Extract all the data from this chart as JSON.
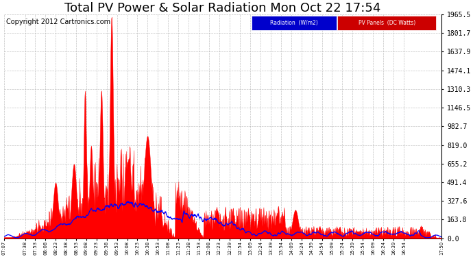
{
  "title": "Total PV Power & Solar Radiation Mon Oct 22 17:54",
  "copyright": "Copyright 2012 Cartronics.com",
  "legend_labels": [
    "Radiation  (W/m2)",
    "PV Panels  (DC Watts)"
  ],
  "y_ticks": [
    0.0,
    163.8,
    327.6,
    491.4,
    655.2,
    819.0,
    982.7,
    1146.5,
    1310.3,
    1474.1,
    1637.9,
    1801.7,
    1965.5
  ],
  "x_tick_labels": [
    "07:07",
    "07:38",
    "07:53",
    "08:08",
    "08:23",
    "08:38",
    "08:53",
    "09:08",
    "09:23",
    "09:38",
    "09:53",
    "10:08",
    "10:23",
    "10:38",
    "10:53",
    "11:08",
    "11:23",
    "11:38",
    "11:53",
    "12:08",
    "12:23",
    "12:39",
    "12:54",
    "13:09",
    "13:24",
    "13:39",
    "13:54",
    "14:09",
    "14:24",
    "14:39",
    "14:54",
    "15:09",
    "15:24",
    "15:39",
    "15:54",
    "16:09",
    "16:24",
    "16:39",
    "16:54",
    "17:50"
  ],
  "pv_color": "#ff0000",
  "radiation_color": "#0000ff",
  "bg_color": "#ffffff",
  "grid_color": "#aaaaaa",
  "ylim": [
    0,
    1965.5
  ],
  "title_fontsize": 13,
  "copyright_fontsize": 7,
  "legend_rad_color": "#0000cc",
  "legend_pv_color": "#cc0000"
}
